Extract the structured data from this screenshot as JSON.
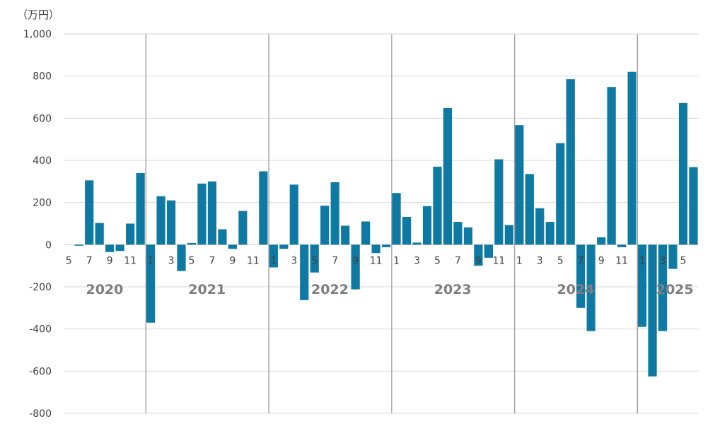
{
  "chart_data": {
    "type": "bar",
    "title": "",
    "unit_label": "（万円）",
    "ylim": [
      -800,
      1000
    ],
    "y_ticks": [
      1000,
      800,
      600,
      400,
      200,
      0,
      -200,
      -400,
      -600,
      -800
    ],
    "y_tick_labels": [
      "1,000",
      "800",
      "600",
      "400",
      "200",
      "0",
      "-200",
      "-400",
      "-600",
      "-800"
    ],
    "gridlines": true,
    "bar_color": "#0E79A3",
    "year_labels": [
      "2020",
      "2021",
      "2022",
      "2023",
      "2024",
      "2025"
    ],
    "categories": [
      "2020-05",
      "2020-06",
      "2020-07",
      "2020-08",
      "2020-09",
      "2020-10",
      "2020-11",
      "2020-12",
      "2021-01",
      "2021-02",
      "2021-03",
      "2021-04",
      "2021-05",
      "2021-06",
      "2021-07",
      "2021-08",
      "2021-09",
      "2021-10",
      "2021-11",
      "2021-12",
      "2022-01",
      "2022-02",
      "2022-03",
      "2022-04",
      "2022-05",
      "2022-06",
      "2022-07",
      "2022-08",
      "2022-09",
      "2022-10",
      "2022-11",
      "2022-12",
      "2023-01",
      "2023-02",
      "2023-03",
      "2023-04",
      "2023-05",
      "2023-06",
      "2023-07",
      "2023-08",
      "2023-09",
      "2023-10",
      "2023-11",
      "2023-12",
      "2024-01",
      "2024-02",
      "2024-03",
      "2024-04",
      "2024-05",
      "2024-06",
      "2024-07",
      "2024-08",
      "2024-09",
      "2024-10",
      "2024-11",
      "2024-12",
      "2025-01",
      "2025-02",
      "2025-03",
      "2025-04",
      "2025-05",
      "2025-06"
    ],
    "month_tick_labels": [
      "5",
      "",
      "7",
      "",
      "9",
      "",
      "11",
      "",
      "1",
      "",
      "3",
      "",
      "5",
      "",
      "7",
      "",
      "9",
      "",
      "11",
      "",
      "1",
      "",
      "3",
      "",
      "5",
      "",
      "7",
      "",
      "9",
      "",
      "11",
      "",
      "1",
      "",
      "3",
      "",
      "5",
      "",
      "7",
      "",
      "9",
      "",
      "11",
      "",
      "1",
      "",
      "3",
      "",
      "5",
      "",
      "7",
      "",
      "9",
      "",
      "11",
      "",
      "1",
      "",
      "3",
      "",
      "5",
      ""
    ],
    "values": [
      0,
      -5,
      305,
      103,
      -35,
      -30,
      100,
      340,
      -370,
      230,
      210,
      -125,
      8,
      290,
      300,
      73,
      -20,
      160,
      0,
      348,
      -108,
      -20,
      285,
      -263,
      -132,
      185,
      296,
      90,
      -212,
      110,
      -40,
      -12,
      245,
      132,
      10,
      183,
      370,
      648,
      108,
      82,
      -100,
      -62,
      405,
      93,
      567,
      335,
      173,
      108,
      482,
      785,
      -300,
      -410,
      35,
      748,
      -12,
      820,
      -390,
      -625,
      -410,
      -115,
      672,
      368
    ]
  }
}
